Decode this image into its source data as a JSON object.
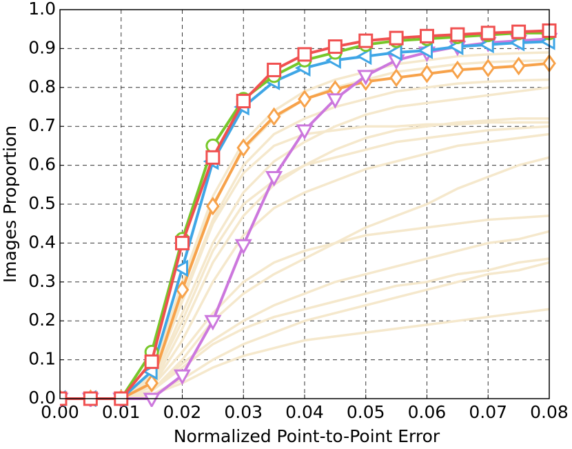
{
  "chart_data": {
    "type": "line",
    "x_label": "Normalized Point-to-Point Error",
    "y_label": "Images Proportion",
    "x": [
      0,
      0.005,
      0.01,
      0.015,
      0.02,
      0.025,
      0.03,
      0.035,
      0.04,
      0.045,
      0.05,
      0.055,
      0.06,
      0.065,
      0.07,
      0.075,
      0.08
    ],
    "xlim": [
      0,
      0.08
    ],
    "ylim": [
      0,
      1
    ],
    "xticks": [
      {
        "value": 0,
        "label": "0.00"
      },
      {
        "value": 0.01,
        "label": "0.01"
      },
      {
        "value": 0.02,
        "label": "0.02"
      },
      {
        "value": 0.03,
        "label": "0.03"
      },
      {
        "value": 0.04,
        "label": "0.04"
      },
      {
        "value": 0.05,
        "label": "0.05"
      },
      {
        "value": 0.06,
        "label": "0.06"
      },
      {
        "value": 0.07,
        "label": "0.07"
      },
      {
        "value": 0.08,
        "label": "0.08"
      }
    ],
    "yticks": [
      {
        "value": 0,
        "label": "0.0"
      },
      {
        "value": 0.1,
        "label": "0.1"
      },
      {
        "value": 0.2,
        "label": "0.2"
      },
      {
        "value": 0.3,
        "label": "0.3"
      },
      {
        "value": 0.4,
        "label": "0.4"
      },
      {
        "value": 0.5,
        "label": "0.5"
      },
      {
        "value": 0.6,
        "label": "0.6"
      },
      {
        "value": 0.7,
        "label": "0.7"
      },
      {
        "value": 0.8,
        "label": "0.8"
      },
      {
        "value": 0.9,
        "label": "0.9"
      },
      {
        "value": 1,
        "label": "1.0"
      }
    ],
    "grid": true,
    "series": [
      {
        "color": "#f5e8cc",
        "values": [
          0,
          0,
          0,
          0.01,
          0.04,
          0.08,
          0.11,
          0.13,
          0.15,
          0.16,
          0.17,
          0.18,
          0.19,
          0.2,
          0.21,
          0.22,
          0.23
        ]
      },
      {
        "color": "#f5e8cc",
        "values": [
          0,
          0,
          0,
          0.01,
          0.05,
          0.1,
          0.14,
          0.17,
          0.2,
          0.22,
          0.24,
          0.26,
          0.28,
          0.3,
          0.32,
          0.33,
          0.35
        ]
      },
      {
        "color": "#f5e8cc",
        "values": [
          0,
          0,
          0,
          0.02,
          0.08,
          0.14,
          0.18,
          0.21,
          0.23,
          0.25,
          0.27,
          0.29,
          0.3,
          0.32,
          0.33,
          0.35,
          0.36
        ]
      },
      {
        "color": "#f5e8cc",
        "values": [
          0,
          0,
          0,
          0.02,
          0.09,
          0.15,
          0.2,
          0.24,
          0.27,
          0.3,
          0.32,
          0.34,
          0.36,
          0.38,
          0.4,
          0.41,
          0.43
        ]
      },
      {
        "color": "#f5e8cc",
        "values": [
          0,
          0,
          0,
          0.03,
          0.12,
          0.22,
          0.3,
          0.35,
          0.38,
          0.4,
          0.42,
          0.43,
          0.44,
          0.45,
          0.46,
          0.465,
          0.47
        ]
      },
      {
        "color": "#f5e8cc",
        "values": [
          0,
          0,
          0,
          0.02,
          0.1,
          0.2,
          0.27,
          0.32,
          0.36,
          0.4,
          0.44,
          0.47,
          0.5,
          0.54,
          0.57,
          0.6,
          0.62
        ]
      },
      {
        "color": "#f5e8cc",
        "values": [
          0,
          0,
          0,
          0.03,
          0.15,
          0.3,
          0.42,
          0.49,
          0.53,
          0.56,
          0.59,
          0.61,
          0.63,
          0.65,
          0.66,
          0.67,
          0.68
        ]
      },
      {
        "color": "#f5e8cc",
        "values": [
          0,
          0,
          0,
          0.04,
          0.2,
          0.38,
          0.5,
          0.56,
          0.6,
          0.62,
          0.64,
          0.66,
          0.67,
          0.68,
          0.69,
          0.695,
          0.7
        ]
      },
      {
        "color": "#f5e8cc",
        "values": [
          0,
          0,
          0,
          0.05,
          0.25,
          0.45,
          0.58,
          0.65,
          0.68,
          0.69,
          0.7,
          0.7,
          0.705,
          0.705,
          0.71,
          0.71,
          0.71
        ]
      },
      {
        "color": "#f5e8cc",
        "values": [
          0,
          0,
          0,
          0.03,
          0.18,
          0.35,
          0.47,
          0.55,
          0.6,
          0.64,
          0.67,
          0.69,
          0.7,
          0.71,
          0.715,
          0.72,
          0.72
        ]
      },
      {
        "color": "#f5e8cc",
        "values": [
          0,
          0,
          0,
          0.04,
          0.22,
          0.4,
          0.53,
          0.61,
          0.66,
          0.7,
          0.73,
          0.75,
          0.76,
          0.77,
          0.78,
          0.79,
          0.8
        ]
      },
      {
        "color": "#f5e8cc",
        "values": [
          0,
          0,
          0,
          0.05,
          0.26,
          0.46,
          0.6,
          0.68,
          0.72,
          0.75,
          0.77,
          0.79,
          0.8,
          0.81,
          0.815,
          0.818,
          0.82
        ]
      },
      {
        "color": "#f5e8cc",
        "values": [
          0,
          0,
          0,
          0.05,
          0.3,
          0.5,
          0.64,
          0.72,
          0.77,
          0.8,
          0.82,
          0.84,
          0.85,
          0.86,
          0.865,
          0.868,
          0.87
        ]
      },
      {
        "color": "#f5e8cc",
        "values": [
          0,
          0,
          0,
          0.06,
          0.3,
          0.52,
          0.66,
          0.74,
          0.79,
          0.82,
          0.84,
          0.86,
          0.87,
          0.88,
          0.885,
          0.888,
          0.89
        ]
      },
      {
        "color": "#f7a24a",
        "marker": "diamond",
        "values": [
          0,
          0,
          0,
          0.04,
          0.28,
          0.495,
          0.645,
          0.725,
          0.77,
          0.795,
          0.815,
          0.825,
          0.835,
          0.845,
          0.85,
          0.855,
          0.862
        ]
      },
      {
        "color": "#cc77dd",
        "marker": "triangle-down",
        "values": [
          0,
          0,
          0,
          0,
          0.06,
          0.2,
          0.395,
          0.57,
          0.69,
          0.77,
          0.83,
          0.87,
          0.89,
          0.905,
          0.915,
          0.92,
          0.925
        ]
      },
      {
        "color": "#3fa6e6",
        "marker": "triangle-left",
        "values": [
          0,
          0,
          0,
          0.07,
          0.335,
          0.61,
          0.75,
          0.815,
          0.85,
          0.87,
          0.88,
          0.89,
          0.895,
          0.905,
          0.91,
          0.915,
          0.918
        ]
      },
      {
        "color": "#77c72a",
        "marker": "circle",
        "values": [
          0,
          0,
          0,
          0.12,
          0.41,
          0.65,
          0.77,
          0.83,
          0.87,
          0.89,
          0.91,
          0.92,
          0.925,
          0.93,
          0.935,
          0.94,
          0.94
        ]
      },
      {
        "color": "#f05050",
        "marker": "square",
        "values": [
          0,
          0,
          0,
          0.095,
          0.4,
          0.62,
          0.765,
          0.845,
          0.885,
          0.905,
          0.92,
          0.927,
          0.932,
          0.936,
          0.94,
          0.943,
          0.946
        ]
      }
    ]
  }
}
